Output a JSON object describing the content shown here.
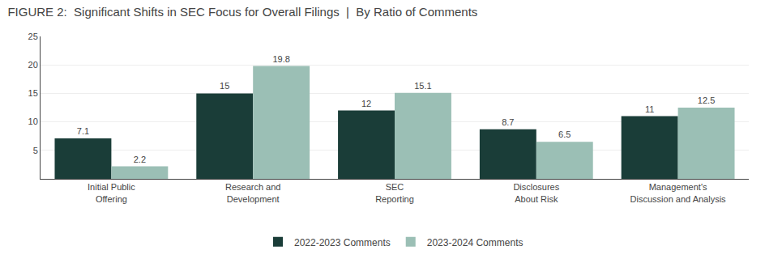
{
  "chart_data": {
    "type": "bar",
    "title": "FIGURE 2:  Significant Shifts in SEC Focus for Overall Filings  |  By Ratio of Comments",
    "categories": [
      "Initial Public\nOffering",
      "Research and\nDevelopment",
      "SEC\nReporting",
      "Disclosures\nAbout Risk",
      "Management's\nDiscussion and Analysis"
    ],
    "series": [
      {
        "name": "2022-2023 Comments",
        "color": "#1a3d38",
        "values": [
          7.1,
          15.0,
          12.0,
          8.7,
          11.0
        ]
      },
      {
        "name": "2023-2024 Comments",
        "color": "#9bbfb5",
        "values": [
          2.2,
          19.8,
          15.1,
          6.5,
          12.5
        ]
      }
    ],
    "ylim": [
      0,
      25
    ],
    "yticks": [
      5,
      10,
      15,
      20,
      25
    ],
    "grid": true,
    "legend": "bottom",
    "data_labels": true
  }
}
